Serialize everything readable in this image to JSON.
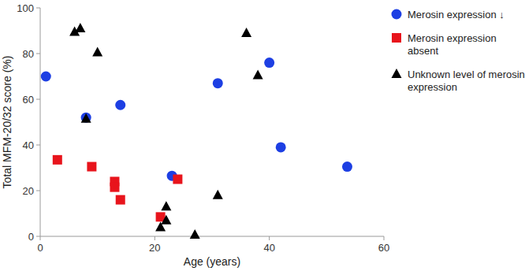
{
  "chart_data": {
    "type": "scatter",
    "x_label": "Age (years)",
    "y_label": "Total MFM-20/32 score (%)",
    "xlim": [
      0,
      60
    ],
    "xticks": [
      0,
      20,
      40,
      60
    ],
    "ylim": [
      0,
      100
    ],
    "yticks": [
      0,
      20,
      40,
      60,
      80,
      100
    ],
    "legend": "right",
    "series": [
      {
        "name": "Merosin expression ↓",
        "color": "#1d3fe3",
        "marker": "circle",
        "x": [
          1,
          8,
          14,
          23,
          31,
          40,
          42,
          53.6
        ],
        "values": [
          70,
          52,
          57.5,
          26.5,
          67,
          76,
          39,
          30.5
        ]
      },
      {
        "name": "Merosin expression absent",
        "color": "#e8141c",
        "marker": "square",
        "x": [
          3,
          9,
          13,
          13,
          14,
          21,
          24
        ],
        "values": [
          33.5,
          30.5,
          24,
          21.5,
          16,
          8.5,
          25
        ]
      },
      {
        "name": "Unknown level of merosin expression",
        "color": "#000000",
        "marker": "triangle",
        "x": [
          6,
          7,
          10,
          8,
          22,
          22,
          21,
          27,
          31,
          36,
          38
        ],
        "values": [
          89.5,
          91,
          80.5,
          51.5,
          13,
          7,
          4,
          0.7,
          18,
          89,
          70.5
        ]
      }
    ]
  }
}
